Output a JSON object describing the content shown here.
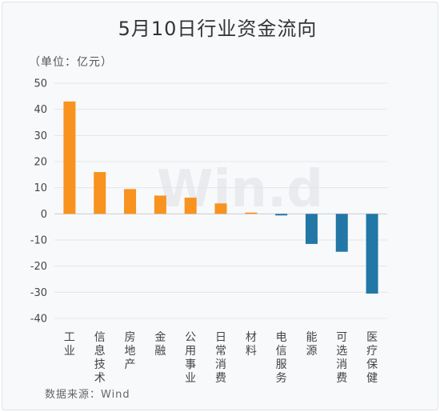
{
  "chart_data": {
    "type": "bar",
    "title": "5月10日行业资金流向",
    "unit_label": "（单位：亿元）",
    "source": "数据来源：Wind",
    "watermark": "Win.d",
    "categories": [
      "工业",
      "信息技术",
      "房地产",
      "金融",
      "公用事业",
      "日常消费",
      "材料",
      "电信服务",
      "能源",
      "可选消费",
      "医疗保健"
    ],
    "values": [
      43,
      16,
      9.5,
      7,
      6.2,
      4,
      0.5,
      -0.6,
      -11.5,
      -14.5,
      -30.5
    ],
    "ylim": [
      -40,
      50
    ],
    "yticks": [
      50,
      40,
      30,
      20,
      10,
      0,
      -10,
      -20,
      -30,
      -40
    ],
    "grid": true,
    "colors": {
      "positive": "#f7931e",
      "negative": "#2277a6"
    }
  }
}
